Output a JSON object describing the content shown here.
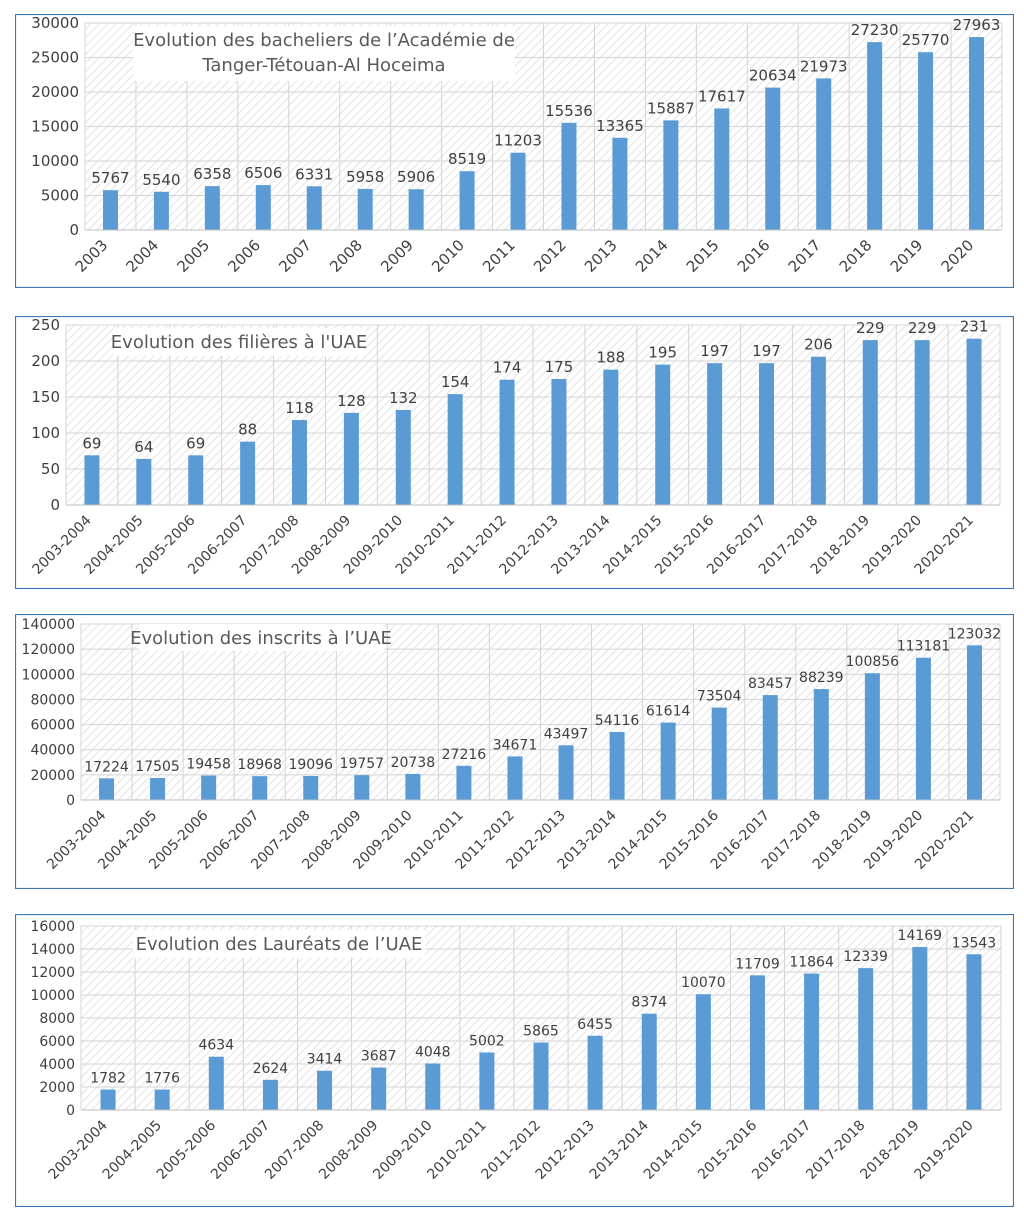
{
  "chart_data": [
    {
      "type": "bar",
      "title": [
        "Evolution des bacheliers de l’Académie de",
        "Tanger-Tétouan-Al Hoceima"
      ],
      "categories": [
        "2003",
        "2004",
        "2005",
        "2006",
        "2007",
        "2008",
        "2009",
        "2010",
        "2011",
        "2012",
        "2013",
        "2014",
        "2015",
        "2016",
        "2017",
        "2018",
        "2019",
        "2020"
      ],
      "values": [
        5767,
        5540,
        6358,
        6506,
        6331,
        5958,
        5906,
        8519,
        11203,
        15536,
        13365,
        15887,
        17617,
        20634,
        21973,
        27230,
        25770,
        27963
      ],
      "yticks": [
        0,
        5000,
        10000,
        15000,
        20000,
        25000,
        30000
      ],
      "ylim": [
        0,
        30000
      ],
      "bar_color": "#5b9bd5",
      "grid": true,
      "legend": "none"
    },
    {
      "type": "bar",
      "title": [
        "Evolution des filières à l'UAE"
      ],
      "categories": [
        "2003-2004",
        "2004-2005",
        "2005-2006",
        "2006-2007",
        "2007-2008",
        "2008-2009",
        "2009-2010",
        "2010-2011",
        "2011-2012",
        "2012-2013",
        "2013-2014",
        "2014-2015",
        "2015-2016",
        "2016-2017",
        "2017-2018",
        "2018-2019",
        "2019-2020",
        "2020-2021"
      ],
      "values": [
        69,
        64,
        69,
        88,
        118,
        128,
        132,
        154,
        174,
        175,
        188,
        195,
        197,
        197,
        206,
        229,
        229,
        231
      ],
      "yticks": [
        0,
        50,
        100,
        150,
        200,
        250
      ],
      "ylim": [
        0,
        250
      ],
      "bar_color": "#5b9bd5",
      "grid": true,
      "legend": "none"
    },
    {
      "type": "bar",
      "title": [
        "Evolution des inscrits à l’UAE"
      ],
      "categories": [
        "2003-2004",
        "2004-2005",
        "2005-2006",
        "2006-2007",
        "2007-2008",
        "2008-2009",
        "2009-2010",
        "2010-2011",
        "2011-2012",
        "2012-2013",
        "2013-2014",
        "2014-2015",
        "2015-2016",
        "2016-2017",
        "2017-2018",
        "2018-2019",
        "2019-2020",
        "2020-2021"
      ],
      "values": [
        17224,
        17505,
        19458,
        18968,
        19096,
        19757,
        20738,
        27216,
        34671,
        43497,
        54116,
        61614,
        73504,
        83457,
        88239,
        100856,
        113181,
        123032
      ],
      "yticks": [
        0,
        20000,
        40000,
        60000,
        80000,
        100000,
        120000,
        140000
      ],
      "ylim": [
        0,
        140000
      ],
      "bar_color": "#5b9bd5",
      "grid": true,
      "legend": "none"
    },
    {
      "type": "bar",
      "title": [
        "Evolution des Lauréats de l’UAE"
      ],
      "categories": [
        "2003-2004",
        "2004-2005",
        "2005-2006",
        "2006-2007",
        "2007-2008",
        "2008-2009",
        "2009-2010",
        "2010-2011",
        "2011-2012",
        "2012-2013",
        "2013-2014",
        "2014-2015",
        "2015-2016",
        "2016-2017",
        "2017-2018",
        "2018-2019",
        "2019-2020"
      ],
      "values": [
        1782,
        1776,
        4634,
        2624,
        3414,
        3687,
        4048,
        5002,
        5865,
        6455,
        8374,
        10070,
        11709,
        11864,
        12339,
        14169,
        13543
      ],
      "yticks": [
        0,
        2000,
        4000,
        6000,
        8000,
        10000,
        12000,
        14000,
        16000
      ],
      "ylim": [
        0,
        16000
      ],
      "bar_color": "#5b9bd5",
      "grid": true,
      "legend": "none"
    }
  ]
}
